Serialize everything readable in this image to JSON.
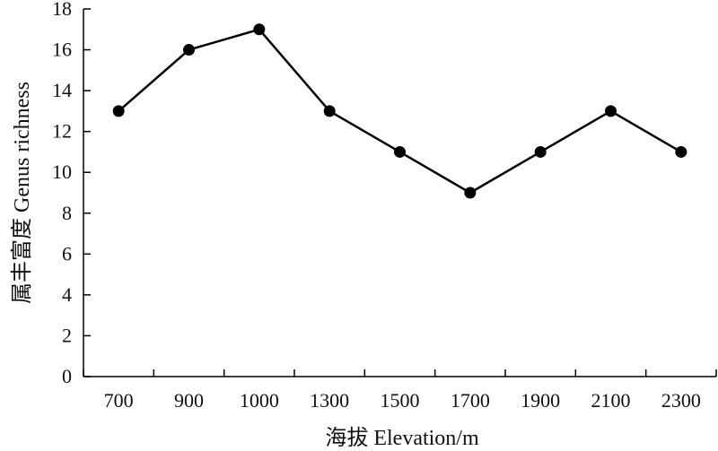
{
  "chart_data": {
    "type": "line",
    "title": "",
    "xlabel": "海拔 Elevation/m",
    "ylabel": "属丰富度 Genus richness",
    "categories": [
      "700",
      "900",
      "1000",
      "1300",
      "1500",
      "1700",
      "1900",
      "2100",
      "2300"
    ],
    "series": [
      {
        "values": [
          13,
          16,
          17,
          13,
          11,
          9,
          11,
          13,
          11
        ]
      }
    ],
    "ylim": [
      0,
      18
    ],
    "yticks": [
      0,
      2,
      4,
      6,
      8,
      10,
      12,
      14,
      16,
      18
    ],
    "grid": false,
    "legend": "none",
    "line_color": "#000000",
    "marker_color": "#000000"
  }
}
